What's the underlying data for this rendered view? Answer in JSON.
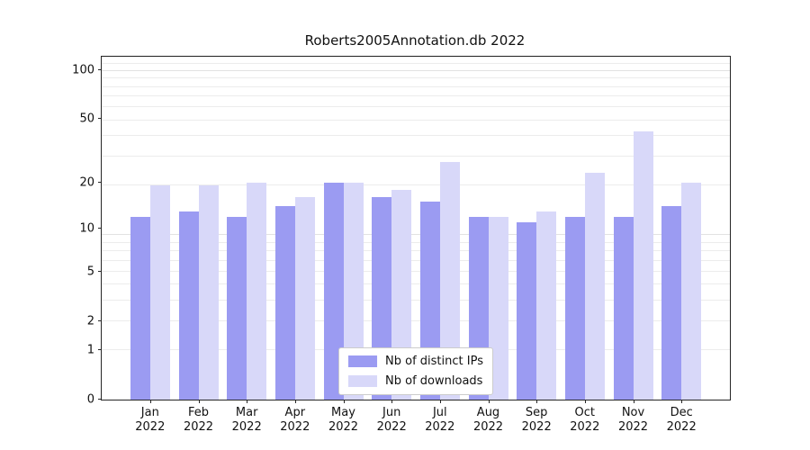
{
  "title": "Roberts2005Annotation.db 2022",
  "chart_data": {
    "type": "bar",
    "title": "Roberts2005Annotation.db 2022",
    "categories": [
      "Jan 2022",
      "Feb 2022",
      "Mar 2022",
      "Apr 2022",
      "May 2022",
      "Jun 2022",
      "Jul 2022",
      "Aug 2022",
      "Sep 2022",
      "Oct 2022",
      "Nov 2022",
      "Dec 2022"
    ],
    "series": [
      {
        "name": "Nb of distinct IPs",
        "color": "#9b9bf2",
        "values": [
          12,
          13,
          12,
          14,
          20,
          16,
          15,
          12,
          11,
          12,
          12,
          14
        ]
      },
      {
        "name": "Nb of downloads",
        "color": "#d8d8f9",
        "values": [
          19,
          19,
          20,
          16,
          20,
          18,
          27,
          12,
          13,
          23,
          42,
          20
        ]
      }
    ],
    "yscale": "log1p",
    "yticks": [
      0,
      1,
      2,
      5,
      10,
      20,
      50,
      100
    ],
    "ylim": [
      0,
      121
    ],
    "xlabel": "",
    "ylabel": "",
    "grid": "horizontal-minor",
    "legend_position": "lower center"
  }
}
